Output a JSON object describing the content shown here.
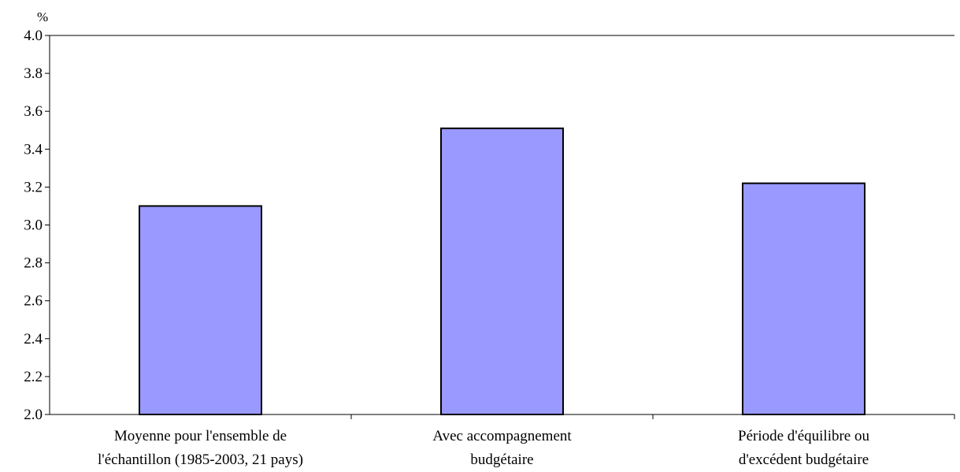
{
  "chart_data": {
    "type": "bar",
    "title": "",
    "xlabel": "",
    "ylabel": "%",
    "ylim": [
      2.0,
      4.0
    ],
    "ytick_step": 0.2,
    "yticks": [
      "2.0",
      "2.2",
      "2.4",
      "2.6",
      "2.8",
      "3.0",
      "3.2",
      "3.4",
      "3.6",
      "3.8",
      "4.0"
    ],
    "grid": false,
    "legend": "none",
    "categories": [
      [
        "Moyenne pour l'ensemble de",
        "l'échantillon (1985-2003, 21 pays)"
      ],
      [
        "Avec accompagnement",
        "budgétaire"
      ],
      [
        "Période d'équilibre ou",
        "d'excédent budgétaire"
      ]
    ],
    "values": [
      3.1,
      3.51,
      3.22
    ],
    "bar_color": "#9999FF",
    "bar_edge_color": "#000000"
  }
}
